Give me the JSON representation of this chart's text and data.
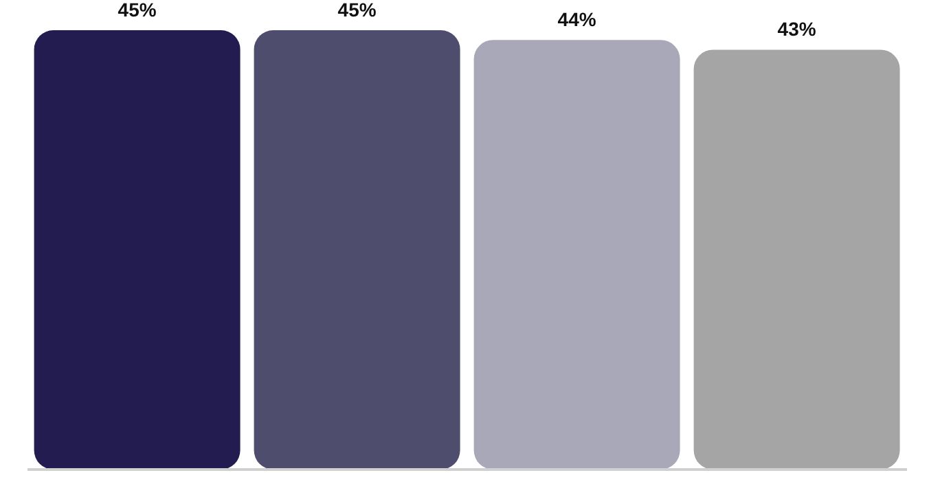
{
  "chart_data": {
    "type": "bar",
    "categories": [
      null,
      null,
      null,
      null
    ],
    "values": [
      45,
      45,
      44,
      43
    ],
    "colors": [
      "#221c50",
      "#4f4d6e",
      "#a9a8b8",
      "#a5a5a5"
    ],
    "value_labels": [
      "45%",
      "45%",
      "44%",
      "43%"
    ]
  }
}
